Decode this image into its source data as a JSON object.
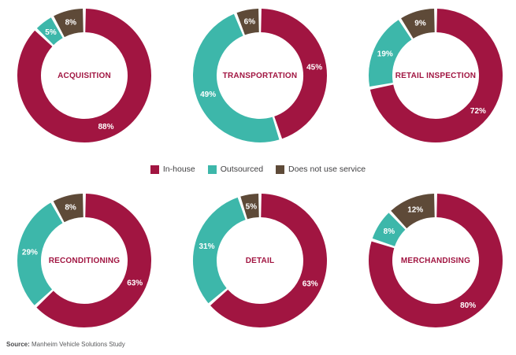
{
  "colors": {
    "in_house": "#A11541",
    "outsourced": "#3DB7AA",
    "no_service": "#5E4A38",
    "title_text": "#A11541",
    "slice_label_text": "#FFFFFF",
    "legend_text": "#414042",
    "source_text": "#58595B",
    "background": "#FFFFFF"
  },
  "legend": {
    "items": [
      {
        "label": "In-house",
        "color_key": "in_house"
      },
      {
        "label": "Outsourced",
        "color_key": "outsourced"
      },
      {
        "label": "Does not use service",
        "color_key": "no_service"
      }
    ]
  },
  "source": {
    "prefix": "Source:",
    "text": " Manheim Vehicle Solutions Study"
  },
  "chart_data": [
    {
      "type": "pie",
      "style": "donut",
      "title": "ACQUISITION",
      "slices": [
        {
          "label": "In-house",
          "color_key": "in_house",
          "value": 88
        },
        {
          "label": "Outsourced",
          "color_key": "outsourced",
          "value": 5
        },
        {
          "label": "Does not use service",
          "color_key": "no_service",
          "value": 8
        }
      ]
    },
    {
      "type": "pie",
      "style": "donut",
      "title": "TRANSPORTATION",
      "slices": [
        {
          "label": "In-house",
          "color_key": "in_house",
          "value": 45
        },
        {
          "label": "Outsourced",
          "color_key": "outsourced",
          "value": 49
        },
        {
          "label": "Does not use service",
          "color_key": "no_service",
          "value": 6
        }
      ]
    },
    {
      "type": "pie",
      "style": "donut",
      "title": "RETAIL INSPECTION",
      "slices": [
        {
          "label": "In-house",
          "color_key": "in_house",
          "value": 72
        },
        {
          "label": "Outsourced",
          "color_key": "outsourced",
          "value": 19
        },
        {
          "label": "Does not use service",
          "color_key": "no_service",
          "value": 9
        }
      ]
    },
    {
      "type": "pie",
      "style": "donut",
      "title": "RECONDITIONING",
      "slices": [
        {
          "label": "In-house",
          "color_key": "in_house",
          "value": 63
        },
        {
          "label": "Outsourced",
          "color_key": "outsourced",
          "value": 29
        },
        {
          "label": "Does not use service",
          "color_key": "no_service",
          "value": 8
        }
      ]
    },
    {
      "type": "pie",
      "style": "donut",
      "title": "DETAIL",
      "slices": [
        {
          "label": "In-house",
          "color_key": "in_house",
          "value": 63
        },
        {
          "label": "Outsourced",
          "color_key": "outsourced",
          "value": 31
        },
        {
          "label": "Does not use service",
          "color_key": "no_service",
          "value": 5
        }
      ]
    },
    {
      "type": "pie",
      "style": "donut",
      "title": "MERCHANDISING",
      "slices": [
        {
          "label": "In-house",
          "color_key": "in_house",
          "value": 80
        },
        {
          "label": "Outsourced",
          "color_key": "outsourced",
          "value": 8
        },
        {
          "label": "Does not use service",
          "color_key": "no_service",
          "value": 12
        }
      ]
    }
  ]
}
